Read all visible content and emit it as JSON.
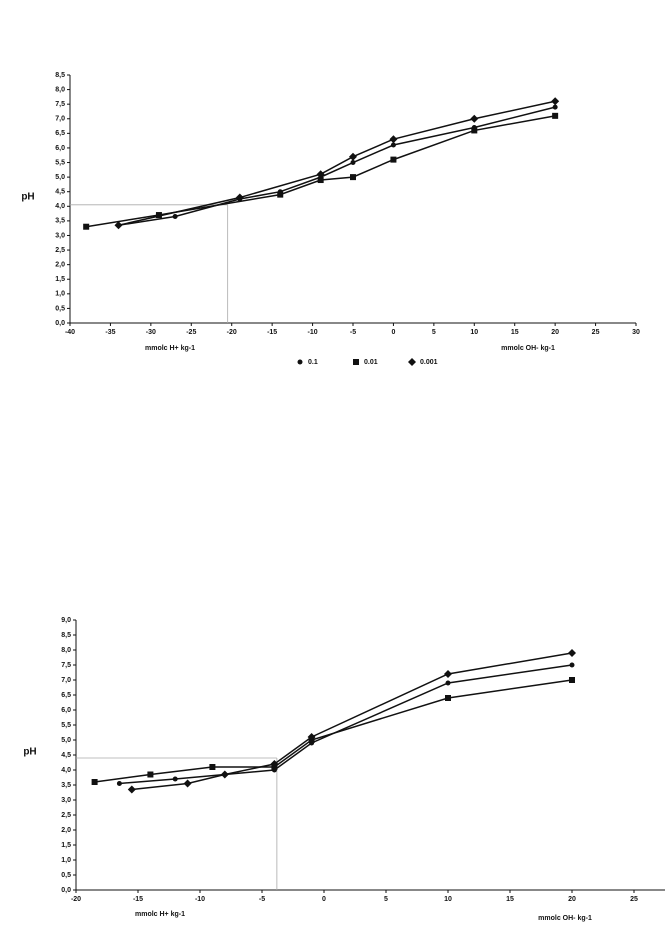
{
  "chart_data": [
    {
      "type": "line",
      "y_label": "pH",
      "x_label_left": "mmolc H+ kg-1",
      "x_label_right": "mmolc OH- kg-1",
      "xlim": [
        -40,
        30
      ],
      "xticks": [
        -40,
        -35,
        -30,
        -25,
        -20,
        -15,
        -10,
        -5,
        0,
        5,
        10,
        15,
        20,
        25,
        30
      ],
      "ylim": [
        0,
        8.5
      ],
      "yticks": [
        {
          "value": 0,
          "label": "0,0"
        },
        {
          "value": 0.5,
          "label": "0,5"
        },
        {
          "value": 1,
          "label": "1,0"
        },
        {
          "value": 1.5,
          "label": "1,5"
        },
        {
          "value": 2,
          "label": "2,0"
        },
        {
          "value": 2.5,
          "label": "2,5"
        },
        {
          "value": 3,
          "label": "3,0"
        },
        {
          "value": 3.5,
          "label": "3,5"
        },
        {
          "value": 4,
          "label": "4,0"
        },
        {
          "value": 4.5,
          "label": "4,5"
        },
        {
          "value": 5,
          "label": "5,0"
        },
        {
          "value": 5.5,
          "label": "5,5"
        },
        {
          "value": 6,
          "label": "6,0"
        },
        {
          "value": 6.5,
          "label": "6,5"
        },
        {
          "value": 7,
          "label": "7,0"
        },
        {
          "value": 7.5,
          "label": "7,5"
        },
        {
          "value": 8,
          "label": "8,0"
        },
        {
          "value": 8.5,
          "label": "8,5"
        }
      ],
      "reference": {
        "x": -20.5,
        "y": 4.05
      },
      "legend": true,
      "series": [
        {
          "name": "0.1",
          "color": "#111",
          "marker": "circle",
          "x": [
            -34,
            -27,
            -19,
            -14,
            -9,
            -5,
            0,
            10,
            20
          ],
          "values": [
            3.35,
            3.65,
            4.25,
            4.5,
            5.0,
            5.5,
            6.1,
            6.7,
            7.4
          ]
        },
        {
          "name": "0.01",
          "color": "#111",
          "marker": "square",
          "x": [
            -38,
            -29,
            -14,
            -9,
            -5,
            0,
            10,
            20
          ],
          "values": [
            3.3,
            3.7,
            4.4,
            4.9,
            5.0,
            5.6,
            6.6,
            7.1
          ]
        },
        {
          "name": "0.001",
          "color": "#111",
          "marker": "diamond",
          "x": [
            -34,
            -19,
            -9,
            -5,
            0,
            10,
            20
          ],
          "values": [
            3.35,
            4.3,
            5.1,
            5.7,
            6.3,
            7.0,
            7.6
          ]
        }
      ]
    },
    {
      "type": "line",
      "y_label": "pH",
      "x_label_left": "mmolc H+ kg-1",
      "x_label_right": "mmolc OH- kg-1",
      "xlim": [
        -20,
        27.5
      ],
      "xticks": [
        -20,
        -15,
        -10,
        -5,
        0,
        5,
        10,
        15,
        20,
        25
      ],
      "ylim": [
        0,
        9
      ],
      "yticks": [
        {
          "value": 0,
          "label": "0,0"
        },
        {
          "value": 0.5,
          "label": "0,5"
        },
        {
          "value": 1,
          "label": "1,0"
        },
        {
          "value": 1.5,
          "label": "1,5"
        },
        {
          "value": 2,
          "label": "2,0"
        },
        {
          "value": 2.5,
          "label": "2,5"
        },
        {
          "value": 3,
          "label": "3,0"
        },
        {
          "value": 3.5,
          "label": "3,5"
        },
        {
          "value": 4,
          "label": "4,0"
        },
        {
          "value": 4.5,
          "label": "4,5"
        },
        {
          "value": 5,
          "label": "5,0"
        },
        {
          "value": 5.5,
          "label": "5,5"
        },
        {
          "value": 6,
          "label": "6,0"
        },
        {
          "value": 6.5,
          "label": "6,5"
        },
        {
          "value": 7,
          "label": "7,0"
        },
        {
          "value": 7.5,
          "label": "7,5"
        },
        {
          "value": 8,
          "label": "8,0"
        },
        {
          "value": 8.5,
          "label": "8,5"
        },
        {
          "value": 9,
          "label": "9,0"
        }
      ],
      "reference": {
        "x": -3.8,
        "y": 4.4
      },
      "legend": false,
      "series": [
        {
          "color": "#111",
          "marker": "circle",
          "x": [
            -16.5,
            -12,
            -4,
            -1,
            10,
            20
          ],
          "values": [
            3.55,
            3.7,
            4.0,
            4.9,
            6.9,
            7.5
          ]
        },
        {
          "color": "#111",
          "marker": "square",
          "x": [
            -18.5,
            -14,
            -9,
            -4,
            -1,
            10,
            20
          ],
          "values": [
            3.6,
            3.85,
            4.1,
            4.1,
            5.0,
            6.4,
            7.0
          ]
        },
        {
          "color": "#111",
          "marker": "diamond",
          "x": [
            -15.5,
            -11,
            -8,
            -4,
            -1,
            10,
            20
          ],
          "values": [
            3.35,
            3.55,
            3.85,
            4.2,
            5.1,
            7.2,
            7.9
          ]
        }
      ]
    }
  ]
}
